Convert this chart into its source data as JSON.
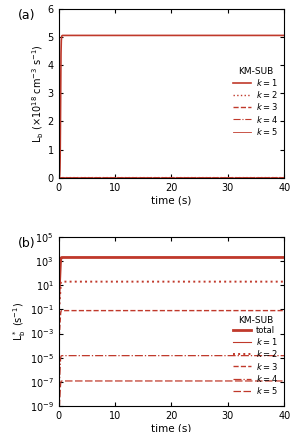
{
  "panel_a": {
    "title": "(a)",
    "ylabel": "L$_\\mathrm{b}$ ($\\times$10$^{18}$ cm$^{-3}$ s$^{-1}$)",
    "xlabel": "time (s)",
    "xlim": [
      0,
      40
    ],
    "ylim": [
      0,
      6
    ],
    "yticks": [
      0,
      1,
      2,
      3,
      4,
      5,
      6
    ],
    "xticks": [
      0,
      10,
      20,
      30,
      40
    ],
    "legend_title": "KM-SUB"
  },
  "panel_b": {
    "title": "(b)",
    "ylabel": "L$_\\mathrm{b}^*$ (s$^{-1}$)",
    "xlabel": "time (s)",
    "xlim": [
      0,
      40
    ],
    "xticks": [
      0,
      10,
      20,
      30,
      40
    ],
    "legend_title": "KM-SUB"
  },
  "color_main": "#c0392b",
  "color_light": "#c0392b"
}
